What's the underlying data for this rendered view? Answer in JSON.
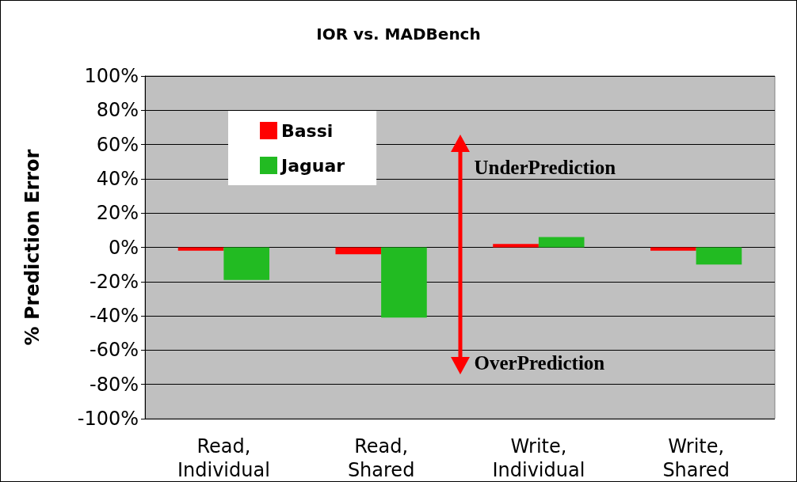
{
  "chart_data": {
    "type": "bar",
    "title": "IOR vs. MADBench",
    "ylabel": "% Prediction Error",
    "categories": [
      "Read, Individual",
      "Read, Shared",
      "Write, Individual",
      "Write, Shared"
    ],
    "series": [
      {
        "name": "Bassi",
        "color": "#ff0000",
        "values": [
          -2,
          -4,
          2,
          -2
        ]
      },
      {
        "name": "Jaguar",
        "color": "#22bb22",
        "values": [
          -19,
          -41,
          6,
          -10
        ]
      }
    ],
    "ylim": [
      -100,
      100
    ],
    "yticks": [
      {
        "value": -100,
        "label": "-100%"
      },
      {
        "value": -80,
        "label": "-80%"
      },
      {
        "value": -60,
        "label": "-60%"
      },
      {
        "value": -40,
        "label": "-40%"
      },
      {
        "value": -20,
        "label": "-20%"
      },
      {
        "value": 0,
        "label": "0%"
      },
      {
        "value": 20,
        "label": "20%"
      },
      {
        "value": 40,
        "label": "40%"
      },
      {
        "value": 60,
        "label": "60%"
      },
      {
        "value": 80,
        "label": "80%"
      },
      {
        "value": 100,
        "label": "100%"
      }
    ],
    "grid": "y",
    "legend": "top left",
    "annotations": [
      "UnderPrediction",
      "OverPrediction"
    ]
  }
}
